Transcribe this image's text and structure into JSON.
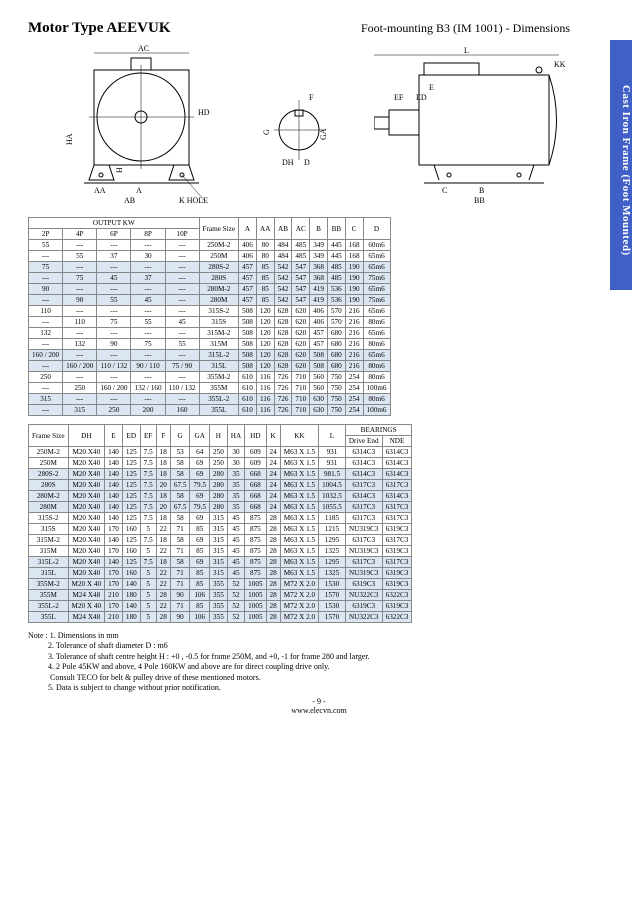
{
  "header": {
    "title": "Motor Type  AEEVUK",
    "subtitle": "Foot-mounting B3 (IM 1001) - Dimensions"
  },
  "sideTab": "Cast Iron Frame (Foot Mounted)",
  "diagLabels": {
    "d1": {
      "AC": "AC",
      "HD": "HD",
      "HA": "HA",
      "H": "H",
      "AA": "AA",
      "A": "A",
      "AB": "AB",
      "KHOLE": "K HOLE"
    },
    "d2": {
      "F": "F",
      "G": "G",
      "GA": "GA",
      "DH": "DH",
      "D": "D"
    },
    "d3": {
      "L": "L",
      "KK": "KK",
      "E": "E",
      "EF": "EF",
      "ED": "ED",
      "C": "C",
      "B": "B",
      "BB": "BB"
    }
  },
  "table1": {
    "head_output": "OUTPUT KW",
    "head_frame": "Frame Size",
    "cols_top": [
      "A",
      "AA",
      "AB",
      "AC",
      "B",
      "BB",
      "C",
      "D"
    ],
    "cols_kw": [
      "2P",
      "4P",
      "6P",
      "8P",
      "10P"
    ],
    "rows": [
      [
        "55",
        "---",
        "---",
        "---",
        "---",
        "250M-2",
        "406",
        "80",
        "484",
        "485",
        "349",
        "445",
        "168",
        "60m6"
      ],
      [
        "---",
        "55",
        "37",
        "30",
        "---",
        "250M",
        "406",
        "80",
        "484",
        "485",
        "349",
        "445",
        "168",
        "65m6"
      ],
      [
        "75",
        "---",
        "---",
        "---",
        "---",
        "280S-2",
        "457",
        "85",
        "542",
        "547",
        "368",
        "485",
        "190",
        "65m6"
      ],
      [
        "---",
        "75",
        "45",
        "37",
        "---",
        "280S",
        "457",
        "85",
        "542",
        "547",
        "368",
        "485",
        "190",
        "75m6"
      ],
      [
        "90",
        "---",
        "---",
        "---",
        "---",
        "280M-2",
        "457",
        "85",
        "542",
        "547",
        "419",
        "536",
        "190",
        "65m6"
      ],
      [
        "---",
        "90",
        "55",
        "45",
        "---",
        "280M",
        "457",
        "85",
        "542",
        "547",
        "419",
        "536",
        "190",
        "75m6"
      ],
      [
        "110",
        "---",
        "---",
        "---",
        "---",
        "315S-2",
        "508",
        "120",
        "628",
        "620",
        "406",
        "570",
        "216",
        "65m6"
      ],
      [
        "---",
        "110",
        "75",
        "55",
        "45",
        "315S",
        "508",
        "120",
        "628",
        "620",
        "406",
        "570",
        "216",
        "80m6"
      ],
      [
        "132",
        "---",
        "---",
        "---",
        "---",
        "315M-2",
        "508",
        "120",
        "628",
        "620",
        "457",
        "680",
        "216",
        "65m6"
      ],
      [
        "---",
        "132",
        "90",
        "75",
        "55",
        "315M",
        "508",
        "120",
        "628",
        "620",
        "457",
        "680",
        "216",
        "80m6"
      ],
      [
        "160 / 200",
        "---",
        "---",
        "---",
        "---",
        "315L-2",
        "508",
        "120",
        "628",
        "620",
        "508",
        "680",
        "216",
        "65m6"
      ],
      [
        "---",
        "160 / 200",
        "110 / 132",
        "90 / 110",
        "75 / 90",
        "315L",
        "508",
        "120",
        "628",
        "620",
        "508",
        "680",
        "216",
        "80m6"
      ],
      [
        "250",
        "---",
        "---",
        "---",
        "---",
        "355M-2",
        "610",
        "116",
        "726",
        "710",
        "560",
        "750",
        "254",
        "80m6"
      ],
      [
        "---",
        "250",
        "160 / 200",
        "132 / 160",
        "110 / 132",
        "355M",
        "610",
        "116",
        "726",
        "710",
        "560",
        "750",
        "254",
        "100m6"
      ],
      [
        "315",
        "---",
        "---",
        "---",
        "---",
        "355L-2",
        "610",
        "116",
        "726",
        "710",
        "630",
        "750",
        "254",
        "80m6"
      ],
      [
        "---",
        "315",
        "250",
        "200",
        "160",
        "355L",
        "610",
        "116",
        "726",
        "710",
        "630",
        "750",
        "254",
        "100m6"
      ]
    ],
    "shadeRows": [
      2,
      3,
      4,
      5,
      10,
      11,
      14,
      15
    ]
  },
  "table2": {
    "head_frame": "Frame Size",
    "cols": [
      "DH",
      "E",
      "ED",
      "EF",
      "F",
      "G",
      "GA",
      "H",
      "HA",
      "HD",
      "K",
      "KK",
      "L"
    ],
    "head_bear": "BEARINGS",
    "bear_cols": [
      "Drive End",
      "NDE"
    ],
    "rows": [
      [
        "250M-2",
        "M20 X40",
        "140",
        "125",
        "7.5",
        "18",
        "53",
        "64",
        "250",
        "30",
        "609",
        "24",
        "M63 X 1.5",
        "931",
        "6314C3",
        "6314C3"
      ],
      [
        "250M",
        "M20 X40",
        "140",
        "125",
        "7.5",
        "18",
        "58",
        "69",
        "250",
        "30",
        "609",
        "24",
        "M63 X 1.5",
        "931",
        "6314C3",
        "6314C3"
      ],
      [
        "280S-2",
        "M20 X40",
        "140",
        "125",
        "7.5",
        "18",
        "58",
        "69",
        "280",
        "35",
        "668",
        "24",
        "M63 X 1.5",
        "981.5",
        "6314C3",
        "6314C3"
      ],
      [
        "280S",
        "M20 X40",
        "140",
        "125",
        "7.5",
        "20",
        "67.5",
        "79.5",
        "280",
        "35",
        "668",
        "24",
        "M63 X 1.5",
        "1004.5",
        "6317C3",
        "6317C3"
      ],
      [
        "280M-2",
        "M20 X40",
        "140",
        "125",
        "7.5",
        "18",
        "58",
        "69",
        "280",
        "35",
        "668",
        "24",
        "M63 X 1.5",
        "1032.5",
        "6314C3",
        "6314C3"
      ],
      [
        "280M",
        "M20 X40",
        "140",
        "125",
        "7.5",
        "20",
        "67.5",
        "79.5",
        "280",
        "35",
        "668",
        "24",
        "M63 X 1.5",
        "1055.5",
        "6317C3",
        "6317C3"
      ],
      [
        "315S-2",
        "M20 X40",
        "140",
        "125",
        "7.5",
        "18",
        "58",
        "69",
        "315",
        "45",
        "875",
        "28",
        "M63 X 1.5",
        "1185",
        "6317C3",
        "6317C3"
      ],
      [
        "315S",
        "M20 X40",
        "170",
        "160",
        "5",
        "22",
        "71",
        "85",
        "315",
        "45",
        "875",
        "28",
        "M63 X 1.5",
        "1215",
        "NU319C3",
        "6319C3"
      ],
      [
        "315M-2",
        "M20 X40",
        "140",
        "125",
        "7.5",
        "18",
        "58",
        "69",
        "315",
        "45",
        "875",
        "28",
        "M63 X 1.5",
        "1295",
        "6317C3",
        "6317C3"
      ],
      [
        "315M",
        "M20 X40",
        "170",
        "160",
        "5",
        "22",
        "71",
        "85",
        "315",
        "45",
        "875",
        "28",
        "M63 X 1.5",
        "1325",
        "NU319C3",
        "6319C3"
      ],
      [
        "315L-2",
        "M20 X40",
        "140",
        "125",
        "7.5",
        "18",
        "58",
        "69",
        "315",
        "45",
        "875",
        "28",
        "M63 X 1.5",
        "1295",
        "6317C3",
        "6317C3"
      ],
      [
        "315L",
        "M20 X40",
        "170",
        "160",
        "5",
        "22",
        "71",
        "85",
        "315",
        "45",
        "875",
        "28",
        "M63 X 1.5",
        "1325",
        "NU319C3",
        "6319C3"
      ],
      [
        "355M-2",
        "M20 X 40",
        "170",
        "140",
        "5",
        "22",
        "71",
        "85",
        "355",
        "52",
        "1005",
        "28",
        "M72 X 2.0",
        "1530",
        "6319C3",
        "6319C3"
      ],
      [
        "355M",
        "M24 X48",
        "210",
        "180",
        "5",
        "28",
        "90",
        "106",
        "355",
        "52",
        "1005",
        "28",
        "M72 X 2.0",
        "1570",
        "NU322C3",
        "6322C3"
      ],
      [
        "355L-2",
        "M20 X 40",
        "170",
        "140",
        "5",
        "22",
        "71",
        "85",
        "355",
        "52",
        "1005",
        "28",
        "M72 X 2.0",
        "1530",
        "6319C3",
        "6319C3"
      ],
      [
        "355L",
        "M24 X48",
        "210",
        "180",
        "5",
        "28",
        "90",
        "106",
        "355",
        "52",
        "1005",
        "28",
        "M72 X 2.0",
        "1570",
        "NU322C3",
        "6322C3"
      ]
    ],
    "shadeRows": [
      2,
      3,
      4,
      5,
      10,
      11,
      12,
      13,
      14,
      15
    ]
  },
  "notes": {
    "prefix": "Note :",
    "lines": [
      "1. Dimensions in mm",
      "2. Tolerance of shaft diameter D : m6",
      "3. Tolerance of shaft centre height H :  +0 ,  -0.5 for frame 250M,  and +0,  -1 for frame 280 and larger.",
      "4. 2 Pole 45KW and above, 4 Pole 160KW and above are for direct coupling drive only.",
      "    Consult TECO for belt & pulley drive of these mentioned motors.",
      "5. Data is subject to change without prior notification."
    ]
  },
  "footer": {
    "page": "- 9 -",
    "url": "www.elecvn.com"
  }
}
